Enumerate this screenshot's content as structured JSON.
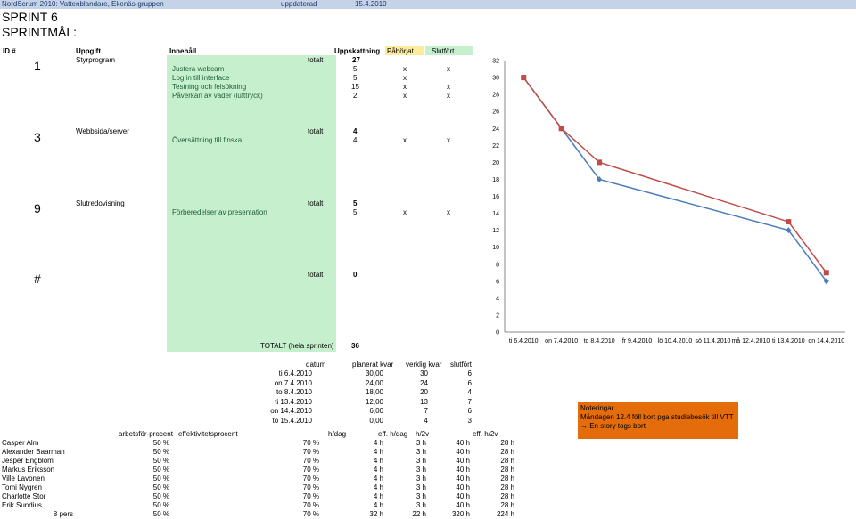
{
  "header": {
    "org": "NordScrum 2010: Vattenblandare, Ekenäs-gruppen",
    "updated_label": "uppdaterad",
    "updated_date": "15.4.2010"
  },
  "sprint_title": "SPRINT 6",
  "sprint_goal_label": "SPRINTMÅL:",
  "columns": {
    "id": "ID #",
    "task": "Uppgift",
    "content": "Innehåll",
    "estimate": "Uppskattning",
    "started": "Påbörjat",
    "done": "Slutfört"
  },
  "tasks": [
    {
      "id": "1",
      "name": "Styrprogram",
      "total_label": "totalt",
      "total": "27",
      "subtasks": [
        {
          "name": "Justera webcam",
          "est": "5",
          "started": "x",
          "done": "x"
        },
        {
          "name": "Log in till interface",
          "est": "5",
          "started": "x",
          "done": ""
        },
        {
          "name": "Testning och felsökning",
          "est": "15",
          "started": "x",
          "done": "x"
        },
        {
          "name": "Påverkan av väder (lufttryck)",
          "est": "2",
          "started": "x",
          "done": "x"
        }
      ]
    },
    {
      "id": "3",
      "name": "Webbsida/server",
      "total_label": "totalt",
      "total": "4",
      "subtasks": [
        {
          "name": "Översättning till finska",
          "est": "4",
          "started": "x",
          "done": "x"
        }
      ]
    },
    {
      "id": "9",
      "name": "Slutredovisning",
      "total_label": "totalt",
      "total": "5",
      "subtasks": [
        {
          "name": "Förberedelser av presentation",
          "est": "5",
          "started": "x",
          "done": "x"
        }
      ]
    },
    {
      "id": "#",
      "name": "",
      "total_label": "totalt",
      "total": "0",
      "subtasks": []
    }
  ],
  "grand_total": {
    "label": "TOTALT (hela sprinten)",
    "value": "36"
  },
  "burndown": {
    "headers": [
      "datum",
      "planerat kvar",
      "verklig kvar",
      "slutfört"
    ],
    "rows": [
      [
        "ti 6.4.2010",
        "30,00",
        "30",
        "6"
      ],
      [
        "on 7.4.2010",
        "24,00",
        "24",
        "6"
      ],
      [
        "to 8.4.2010",
        "18,00",
        "20",
        "4"
      ],
      [
        "ti 13.4.2010",
        "12,00",
        "13",
        "7"
      ],
      [
        "on 14.4.2010",
        "6,00",
        "7",
        "6"
      ],
      [
        "to 15.4.2010",
        "0,00",
        "4",
        "3"
      ]
    ]
  },
  "notes": {
    "title": "Noteringar",
    "line1": "Måndagen 12.4 föll bort pga studiebesök till VTT",
    "line2": "→ En story togs bort"
  },
  "team": {
    "headers": [
      "arbetsför-procent",
      "effektivitetsprocent",
      "h/dag",
      "eff. h/dag",
      "h/2v",
      "eff. h/2v"
    ],
    "members": [
      [
        "Casper Alm",
        "50 %",
        "70 %",
        "4 h",
        "3 h",
        "40 h",
        "28 h"
      ],
      [
        "Alexander Baarman",
        "50 %",
        "70 %",
        "4 h",
        "3 h",
        "40 h",
        "28 h"
      ],
      [
        "Jesper Engblom",
        "50 %",
        "70 %",
        "4 h",
        "3 h",
        "40 h",
        "28 h"
      ],
      [
        "Markus Eriksson",
        "50 %",
        "70 %",
        "4 h",
        "3 h",
        "40 h",
        "28 h"
      ],
      [
        "Ville Lavonen",
        "50 %",
        "70 %",
        "4 h",
        "3 h",
        "40 h",
        "28 h"
      ],
      [
        "Tomi Nygren",
        "50 %",
        "70 %",
        "4 h",
        "3 h",
        "40 h",
        "28 h"
      ],
      [
        "Charlotte Stor",
        "50 %",
        "70 %",
        "4 h",
        "3 h",
        "40 h",
        "28 h"
      ],
      [
        "Erik Sundius",
        "50 %",
        "70 %",
        "4 h",
        "3 h",
        "40 h",
        "28 h"
      ]
    ],
    "total": [
      "8 pers",
      "50 %",
      "70 %",
      "32 h",
      "22 h",
      "320 h",
      "224 h"
    ]
  },
  "chart_data": {
    "type": "line",
    "categories": [
      "ti 6.4.2010",
      "on 7.4.2010",
      "to 8.4.2010",
      "fr 9.4.2010",
      "lö 10.4.2010",
      "sö 11.4.2010",
      "må 12.4.2010",
      "ti 13.4.2010",
      "on 14.4.2010"
    ],
    "y_ticks": [
      0,
      2,
      4,
      6,
      8,
      10,
      12,
      14,
      16,
      18,
      20,
      22,
      24,
      26,
      28,
      30,
      32
    ],
    "ylim": [
      0,
      32
    ],
    "grid": false,
    "series": [
      {
        "color": "#4a7ebb",
        "marker": "diamond",
        "points": [
          [
            0,
            30
          ],
          [
            1,
            24
          ],
          [
            2,
            18
          ],
          [
            7,
            12
          ],
          [
            8,
            6
          ]
        ]
      },
      {
        "color": "#be4b48",
        "marker": "square",
        "points": [
          [
            0,
            30
          ],
          [
            1,
            24
          ],
          [
            2,
            20
          ],
          [
            7,
            13
          ],
          [
            8,
            7
          ]
        ]
      }
    ]
  }
}
